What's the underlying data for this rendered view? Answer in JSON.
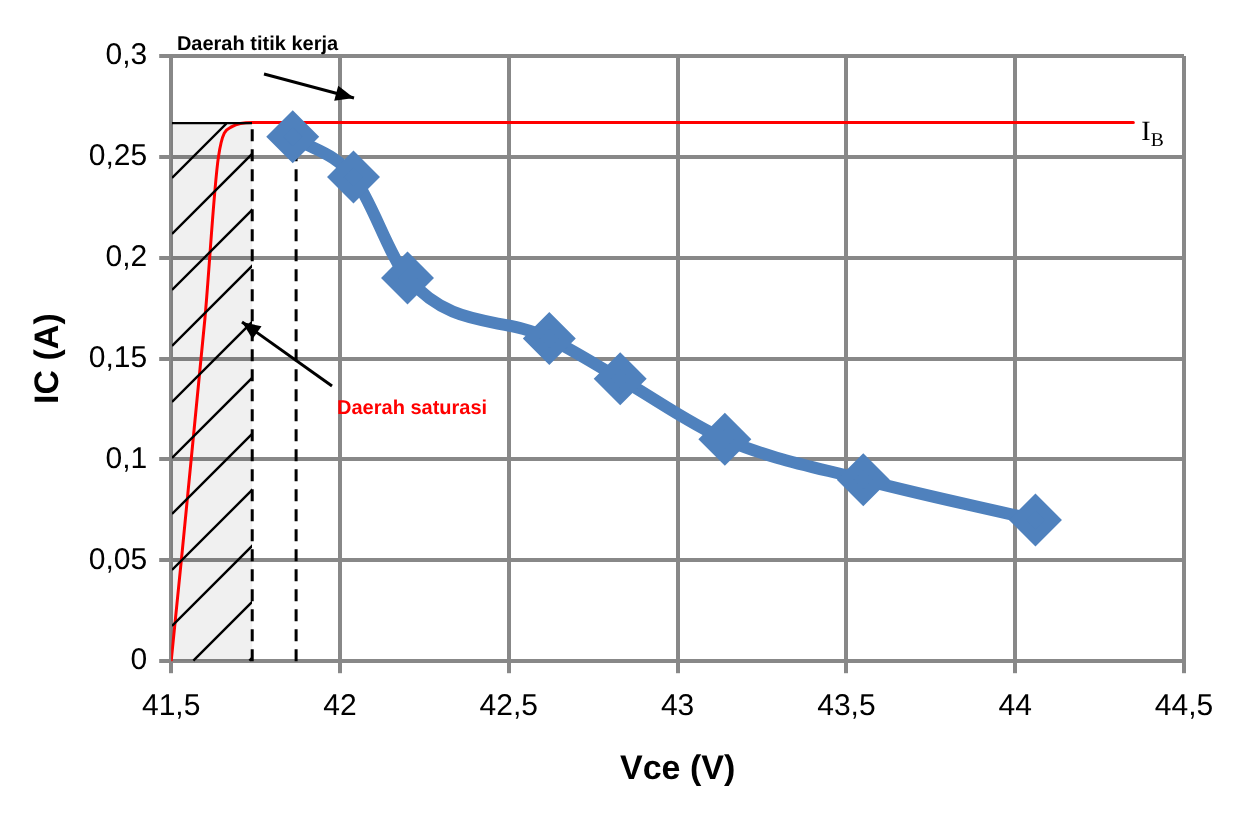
{
  "chart_data": {
    "type": "line",
    "xlabel": "Vce (V)",
    "ylabel": "IC (A)",
    "xlim": [
      41.5,
      44.5
    ],
    "xticks": [
      {
        "value": 41.5,
        "label": "41,5"
      },
      42,
      {
        "value": 42.5,
        "label": "42,5"
      },
      43,
      {
        "value": 43.5,
        "label": "43,5"
      },
      44,
      {
        "value": 44.5,
        "label": "44,5"
      }
    ],
    "ylim": [
      0,
      0.3
    ],
    "yticks": [
      0,
      {
        "value": 0.05,
        "label": "0,05"
      },
      {
        "value": 0.1,
        "label": "0,1"
      },
      {
        "value": 0.15,
        "label": "0,15"
      },
      {
        "value": 0.2,
        "label": "0,2"
      },
      {
        "value": 0.25,
        "label": "0,25"
      },
      {
        "value": 0.3,
        "label": "0,3"
      }
    ],
    "grid": true,
    "legend": false,
    "series": [
      {
        "color": "#4f81bd",
        "marker": "diamond",
        "x": [
          41.86,
          42.04,
          42.2,
          42.62,
          42.83,
          43.14,
          43.55,
          44.06
        ],
        "values": [
          0.26,
          0.24,
          0.19,
          0.16,
          0.14,
          0.11,
          0.09,
          0.07
        ]
      },
      {
        "color": "#ff0000",
        "marker": "none",
        "x": [
          41.5,
          41.6,
          41.64,
          41.68,
          41.74,
          44.35
        ],
        "values": [
          0,
          0.17,
          0.25,
          0.265,
          0.267,
          0.267
        ]
      }
    ],
    "ref_lines": [
      {
        "axis": "x",
        "value": 41.74,
        "line_style": "dashed",
        "color": "#000000"
      },
      {
        "axis": "x",
        "value": 41.87,
        "line_style": "dashed",
        "color": "#000000"
      }
    ],
    "bands": [
      {
        "axis": "x",
        "from": 41.5,
        "to": 41.74,
        "color": "#000000"
      }
    ],
    "annotations": [
      "Daerah titik kerja",
      "Daerah saturasi",
      {
        "text": "I$_{B}$",
        "x": 44.35,
        "y": 0.267
      }
    ]
  }
}
